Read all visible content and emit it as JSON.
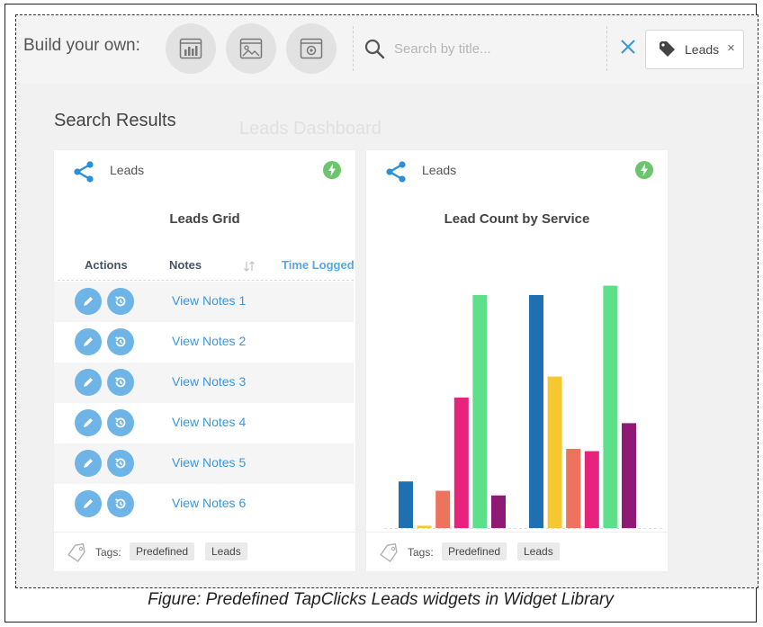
{
  "toolbar": {
    "build_label": "Build your own:",
    "build_buttons": [
      {
        "icon": "bar-chart-widget-icon"
      },
      {
        "icon": "image-widget-icon"
      },
      {
        "icon": "settings-widget-icon"
      }
    ],
    "search_placeholder": "Search by title...",
    "search_value": "",
    "tag_filter": "Leads",
    "clear_icon": "close-icon",
    "remove_tag_glyph": "×",
    "accent_color": "#3a97e0"
  },
  "results_title": "Search Results",
  "background_title": "Leads Dashboard",
  "cards": [
    {
      "source": "Leads",
      "title": "Leads Grid",
      "columns": [
        "Actions",
        "Notes",
        "Time Logged"
      ],
      "rows": [
        "View Notes 1",
        "View Notes 2",
        "View Notes 3",
        "View Notes 4",
        "View Notes 5",
        "View Notes 6"
      ],
      "tags_label": "Tags:",
      "tags": [
        "Predefined",
        "Leads"
      ]
    },
    {
      "source": "Leads",
      "title": "Lead Count by Service",
      "tags_label": "Tags:",
      "tags": [
        "Predefined",
        "Leads"
      ]
    }
  ],
  "chart_data": {
    "type": "bar",
    "title": "Lead Count by Service",
    "xlabel": "",
    "ylabel": "",
    "ylim": [
      0,
      100
    ],
    "grid": false,
    "legend": "none",
    "groups": [
      {
        "bars": [
          {
            "value": 20,
            "color": "#1f6fb3"
          },
          {
            "value": 1,
            "color": "#f5c832"
          },
          {
            "value": 16,
            "color": "#ee735d"
          },
          {
            "value": 56,
            "color": "#e8237c"
          },
          {
            "value": 100,
            "color": "#5ee08a"
          },
          {
            "value": 14,
            "color": "#8e1a76"
          }
        ]
      },
      {
        "bars": [
          {
            "value": 100,
            "color": "#1f6fb3"
          },
          {
            "value": 65,
            "color": "#f5c832"
          },
          {
            "value": 34,
            "color": "#ee735d"
          },
          {
            "value": 33,
            "color": "#e8237c"
          },
          {
            "value": 104,
            "color": "#5ee08a"
          },
          {
            "value": 45,
            "color": "#8e1a76"
          }
        ]
      }
    ]
  },
  "caption": "Figure: Predefined TapClicks Leads widgets in Widget Library"
}
